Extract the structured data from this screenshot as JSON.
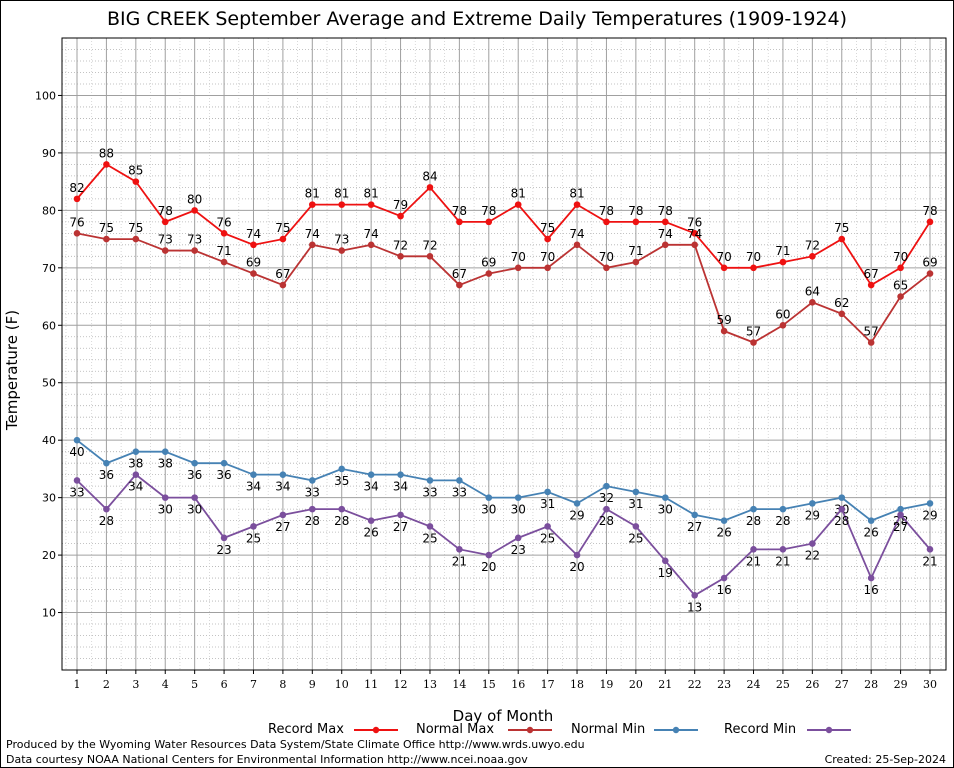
{
  "chart_data": {
    "type": "line",
    "title": "BIG CREEK September Average and Extreme Daily Temperatures (1909-1924)",
    "xlabel": "Day of Month",
    "ylabel": "Temperature (F)",
    "x": [
      1,
      2,
      3,
      4,
      5,
      6,
      7,
      8,
      9,
      10,
      11,
      12,
      13,
      14,
      15,
      16,
      17,
      18,
      19,
      20,
      21,
      22,
      23,
      24,
      25,
      26,
      27,
      28,
      29,
      30
    ],
    "xlim": [
      1,
      30
    ],
    "ylim": [
      0,
      110
    ],
    "yticks": [
      10,
      20,
      30,
      40,
      50,
      60,
      70,
      80,
      90,
      100
    ],
    "grid": true,
    "series": [
      {
        "name": "Record Max",
        "color": "#ee1111",
        "values": [
          82,
          88,
          85,
          78,
          80,
          76,
          74,
          75,
          81,
          81,
          81,
          79,
          84,
          78,
          78,
          81,
          75,
          81,
          78,
          78,
          78,
          76,
          70,
          70,
          71,
          72,
          75,
          67,
          70,
          78
        ]
      },
      {
        "name": "Normal Max",
        "color": "#bb3333",
        "values": [
          76,
          75,
          75,
          73,
          73,
          71,
          69,
          67,
          74,
          73,
          74,
          72,
          72,
          67,
          69,
          70,
          70,
          74,
          70,
          71,
          74,
          74,
          59,
          57,
          60,
          64,
          62,
          57,
          65,
          69
        ]
      },
      {
        "name": "Normal Min",
        "color": "#4682b4",
        "values": [
          40,
          36,
          38,
          38,
          36,
          36,
          34,
          34,
          33,
          35,
          34,
          34,
          33,
          33,
          30,
          30,
          31,
          29,
          32,
          31,
          30,
          27,
          26,
          28,
          28,
          29,
          30,
          26,
          28,
          29
        ]
      },
      {
        "name": "Record Min",
        "color": "#7b4f9d",
        "values": [
          33,
          28,
          34,
          30,
          30,
          23,
          25,
          27,
          28,
          28,
          26,
          27,
          25,
          21,
          20,
          23,
          25,
          20,
          28,
          25,
          19,
          13,
          16,
          21,
          21,
          22,
          28,
          16,
          27,
          21
        ]
      }
    ]
  },
  "footer": {
    "line1": "Produced by the Wyoming Water Resources Data System/State Climate Office http://www.wrds.uwyo.edu",
    "line2": "Data courtesy NOAA National Centers for Environmental Information http://www.ncei.noaa.gov",
    "created": "Created:  25-Sep-2024"
  }
}
